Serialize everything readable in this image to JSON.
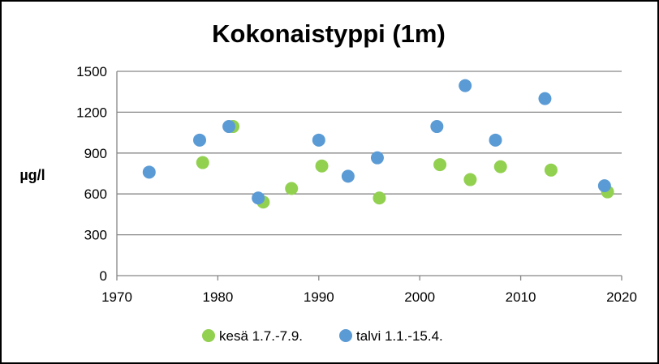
{
  "chart_data": {
    "type": "scatter",
    "title": "Kokonaistyppi (1m)",
    "xlabel": "",
    "ylabel": "µg/l",
    "xlim": [
      1970,
      2020
    ],
    "ylim": [
      0,
      1500
    ],
    "xticks": [
      1970,
      1980,
      1990,
      2000,
      2010,
      2020
    ],
    "yticks": [
      0,
      300,
      600,
      900,
      1200,
      1500
    ],
    "grid": "horizontal",
    "legend": "bottom",
    "series": [
      {
        "name": "kesä 1.7.-7.9.",
        "color": "#92d050",
        "points": [
          {
            "x": 1978.5,
            "y": 830
          },
          {
            "x": 1981.5,
            "y": 1095
          },
          {
            "x": 1984.5,
            "y": 540
          },
          {
            "x": 1987.3,
            "y": 640
          },
          {
            "x": 1990.3,
            "y": 805
          },
          {
            "x": 1996.0,
            "y": 570
          },
          {
            "x": 2002.0,
            "y": 815
          },
          {
            "x": 2005.0,
            "y": 705
          },
          {
            "x": 2008.0,
            "y": 800
          },
          {
            "x": 2013.0,
            "y": 775
          },
          {
            "x": 2018.6,
            "y": 615
          }
        ]
      },
      {
        "name": "talvi 1.1.-15.4.",
        "color": "#5b9bd5",
        "points": [
          {
            "x": 1973.2,
            "y": 760
          },
          {
            "x": 1978.2,
            "y": 995
          },
          {
            "x": 1981.1,
            "y": 1095
          },
          {
            "x": 1984.0,
            "y": 570
          },
          {
            "x": 1990.0,
            "y": 995
          },
          {
            "x": 1992.9,
            "y": 730
          },
          {
            "x": 1995.8,
            "y": 865
          },
          {
            "x": 2001.7,
            "y": 1095
          },
          {
            "x": 2004.5,
            "y": 1395
          },
          {
            "x": 2007.5,
            "y": 995
          },
          {
            "x": 2012.4,
            "y": 1300
          },
          {
            "x": 2018.3,
            "y": 660
          }
        ]
      }
    ]
  }
}
